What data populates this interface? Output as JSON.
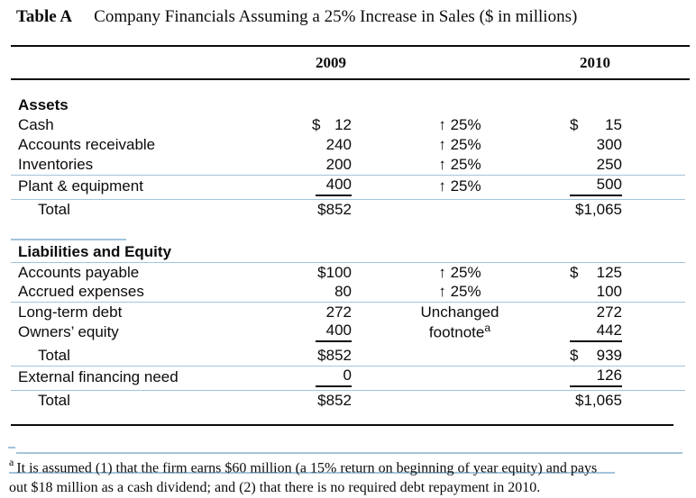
{
  "title": {
    "label": "Table A",
    "text": "Company Financials Assuming a 25% Increase in Sales ($ in millions)"
  },
  "header": {
    "col_2009": "2009",
    "col_2010": "2010"
  },
  "table": {
    "sections": [
      {
        "heading": "Assets",
        "heading_rule": false,
        "rows": [
          {
            "label": "Cash",
            "cur_2009": "$",
            "val_2009": "12",
            "change": "↑ 25%",
            "cur_2010": "$",
            "val_2010": "15"
          },
          {
            "label": "Accounts receivable",
            "val_2009": "240",
            "change": "↑ 25%",
            "val_2010": "300"
          },
          {
            "label": "Inventories",
            "val_2009": "200",
            "change": "↑ 25%",
            "val_2010": "250"
          },
          {
            "label": "Plant & equipment",
            "val_2009": "400",
            "change": "↑ 25%",
            "val_2010": "500",
            "rule_above": true,
            "underline_2009": true,
            "underline_2010": true
          },
          {
            "label": "Total",
            "indent": true,
            "val_2009": "$852",
            "change": "",
            "val_2010": "$1,065",
            "rule_above": true
          }
        ]
      },
      {
        "heading": "Liabilities and Equity",
        "heading_rule": true,
        "rows": [
          {
            "label": "Accounts payable",
            "val_2009": "$100",
            "change": "↑ 25%",
            "cur_2010": "$",
            "val_2010": "125",
            "rule_above": true
          },
          {
            "label": "Accrued expenses",
            "val_2009": "80",
            "change": "↑ 25%",
            "val_2010": "100"
          },
          {
            "label": "Long-term debt",
            "val_2009": "272",
            "change": "Unchanged",
            "val_2010": "272",
            "rule_above": true
          },
          {
            "label": "Owners’ equity",
            "val_2009": "400",
            "change": "footnote",
            "change_sup": "a",
            "val_2010": "442",
            "underline_2009": true,
            "underline_2010": true
          },
          {
            "label": "Total",
            "indent": true,
            "val_2009": "$852",
            "change": "",
            "cur_2010": "$",
            "val_2010": "939"
          },
          {
            "label": "External financing need",
            "val_2009": "0",
            "change": "",
            "val_2010": "126",
            "rule_above": true,
            "underline_2009": true,
            "underline_2010": true
          },
          {
            "label": "Total",
            "indent": true,
            "val_2009": "$852",
            "change": "",
            "val_2010": "$1,065",
            "rule_above": true
          }
        ]
      }
    ]
  },
  "footnote": {
    "marker": "a",
    "lines": [
      "It is assumed (1) that the firm earns $60 million (a 15% return on beginning of year equity) and pays",
      "out $18 million as a cash dividend; and (2) that there is no required debt repayment in 2010."
    ]
  },
  "colors": {
    "separator_blue": "#a3c4da",
    "ink": "#0b0b0b"
  }
}
